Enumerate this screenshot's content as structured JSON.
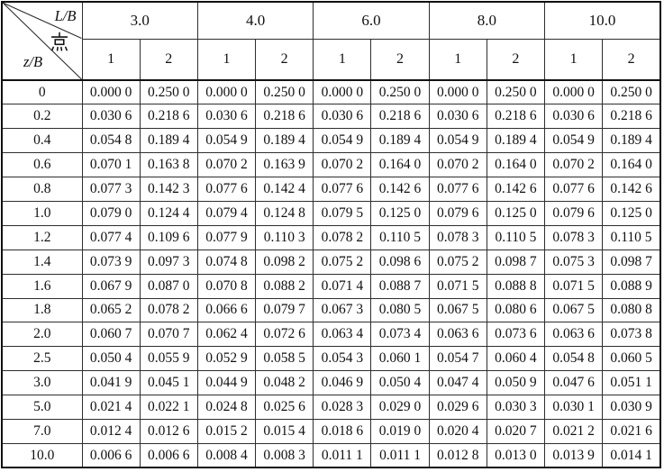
{
  "table": {
    "corner": {
      "top": "L/B",
      "middle": "点",
      "bottom": "z/B"
    },
    "col_groups": [
      "3.0",
      "4.0",
      "6.0",
      "8.0",
      "10.0"
    ],
    "sub_cols": [
      "1",
      "2"
    ],
    "rows": [
      {
        "label": "0",
        "values": [
          "0.000 0",
          "0.250 0",
          "0.000 0",
          "0.250 0",
          "0.000 0",
          "0.250 0",
          "0.000 0",
          "0.250 0",
          "0.000 0",
          "0.250 0"
        ]
      },
      {
        "label": "0.2",
        "values": [
          "0.030 6",
          "0.218 6",
          "0.030 6",
          "0.218 6",
          "0.030 6",
          "0.218 6",
          "0.030 6",
          "0.218 6",
          "0.030 6",
          "0.218 6"
        ]
      },
      {
        "label": "0.4",
        "values": [
          "0.054 8",
          "0.189 4",
          "0.054 9",
          "0.189 4",
          "0.054 9",
          "0.189 4",
          "0.054 9",
          "0.189 4",
          "0.054 9",
          "0.189 4"
        ]
      },
      {
        "label": "0.6",
        "values": [
          "0.070 1",
          "0.163 8",
          "0.070 2",
          "0.163 9",
          "0.070 2",
          "0.164 0",
          "0.070 2",
          "0.164 0",
          "0.070 2",
          "0.164 0"
        ]
      },
      {
        "label": "0.8",
        "values": [
          "0.077 3",
          "0.142 3",
          "0.077 6",
          "0.142 4",
          "0.077 6",
          "0.142 6",
          "0.077 6",
          "0.142 6",
          "0.077 6",
          "0.142 6"
        ]
      },
      {
        "label": "1.0",
        "values": [
          "0.079 0",
          "0.124 4",
          "0.079 4",
          "0.124 8",
          "0.079 5",
          "0.125 0",
          "0.079 6",
          "0.125 0",
          "0.079 6",
          "0.125 0"
        ]
      },
      {
        "label": "1.2",
        "values": [
          "0.077 4",
          "0.109 6",
          "0.077 9",
          "0.110 3",
          "0.078 2",
          "0.110 5",
          "0.078 3",
          "0.110 5",
          "0.078 3",
          "0.110 5"
        ]
      },
      {
        "label": "1.4",
        "values": [
          "0.073 9",
          "0.097 3",
          "0.074 8",
          "0.098 2",
          "0.075 2",
          "0.098 6",
          "0.075 2",
          "0.098 7",
          "0.075 3",
          "0.098 7"
        ]
      },
      {
        "label": "1.6",
        "values": [
          "0.067 9",
          "0.087 0",
          "0.070 8",
          "0.088 2",
          "0.071 4",
          "0.088 7",
          "0.071 5",
          "0.088 8",
          "0.071 5",
          "0.088 9"
        ]
      },
      {
        "label": "1.8",
        "values": [
          "0.065 2",
          "0.078 2",
          "0.066 6",
          "0.079 7",
          "0.067 3",
          "0.080 5",
          "0.067 5",
          "0.080 6",
          "0.067 5",
          "0.080 8"
        ]
      },
      {
        "label": "2.0",
        "values": [
          "0.060 7",
          "0.070 7",
          "0.062 4",
          "0.072 6",
          "0.063 4",
          "0.073 4",
          "0.063 6",
          "0.073 6",
          "0.063 6",
          "0.073 8"
        ]
      },
      {
        "label": "2.5",
        "values": [
          "0.050 4",
          "0.055 9",
          "0.052 9",
          "0.058 5",
          "0.054 3",
          "0.060 1",
          "0.054 7",
          "0.060 4",
          "0.054 8",
          "0.060 5"
        ]
      },
      {
        "label": "3.0",
        "values": [
          "0.041 9",
          "0.045 1",
          "0.044 9",
          "0.048 2",
          "0.046 9",
          "0.050 4",
          "0.047 4",
          "0.050 9",
          "0.047 6",
          "0.051 1"
        ]
      },
      {
        "label": "5.0",
        "values": [
          "0.021 4",
          "0.022 1",
          "0.024 8",
          "0.025 6",
          "0.028 3",
          "0.029 0",
          "0.029 6",
          "0.030 3",
          "0.030 1",
          "0.030 9"
        ]
      },
      {
        "label": "7.0",
        "values": [
          "0.012 4",
          "0.012 6",
          "0.015 2",
          "0.015 4",
          "0.018 6",
          "0.019 0",
          "0.020 4",
          "0.020 7",
          "0.021 2",
          "0.021 6"
        ]
      },
      {
        "label": "10.0",
        "values": [
          "0.006 6",
          "0.006 6",
          "0.008 4",
          "0.008 3",
          "0.011 1",
          "0.011 1",
          "0.012 8",
          "0.013 0",
          "0.013 9",
          "0.014 1"
        ]
      }
    ]
  },
  "colors": {
    "background": "#ffffff",
    "text": "#111111",
    "grid_line": "#2e2e2e",
    "outer_border": "#0f0f0f"
  }
}
